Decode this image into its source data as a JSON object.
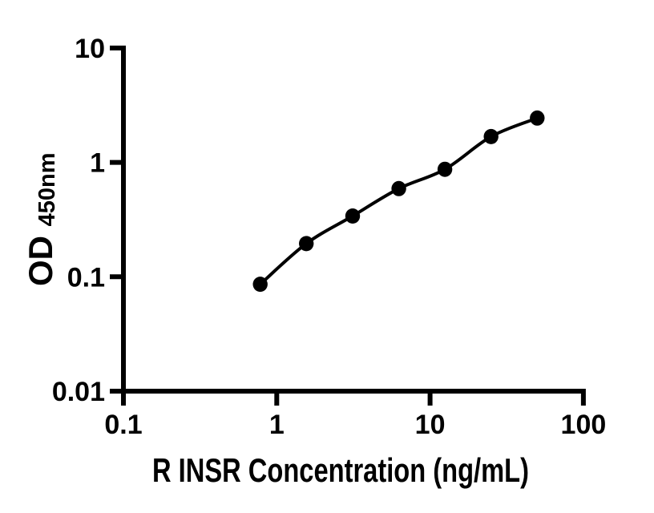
{
  "style": {
    "background": "#ffffff",
    "ink": "#000000"
  },
  "chart_data": {
    "type": "scatter",
    "subtype": "ELISA standard curve with fitted line",
    "xlabel": "R INSR Concentration (ng/mL)",
    "ylabel_main": "OD",
    "ylabel_sub": "450nm",
    "x_scale": "log",
    "y_scale": "log",
    "xlim": [
      0.1,
      100
    ],
    "ylim": [
      0.01,
      10
    ],
    "x_ticks": [
      {
        "value": 0.1,
        "label": "0.1"
      },
      {
        "value": 1,
        "label": "1"
      },
      {
        "value": 10,
        "label": "10"
      },
      {
        "value": 100,
        "label": "100"
      }
    ],
    "y_ticks": [
      {
        "value": 0.01,
        "label": "0.01"
      },
      {
        "value": 0.1,
        "label": "0.1"
      },
      {
        "value": 1,
        "label": "1"
      },
      {
        "value": 10,
        "label": "10"
      }
    ],
    "grid": false,
    "legend": null,
    "series": [
      {
        "name": "R INSR standard curve",
        "marker": "filled-circle",
        "marker_color": "#000000",
        "line_color": "#000000",
        "x": [
          0.78,
          1.56,
          3.125,
          6.25,
          12.5,
          25,
          50
        ],
        "y": [
          0.086,
          0.195,
          0.34,
          0.59,
          0.87,
          1.68,
          2.44
        ]
      }
    ]
  }
}
